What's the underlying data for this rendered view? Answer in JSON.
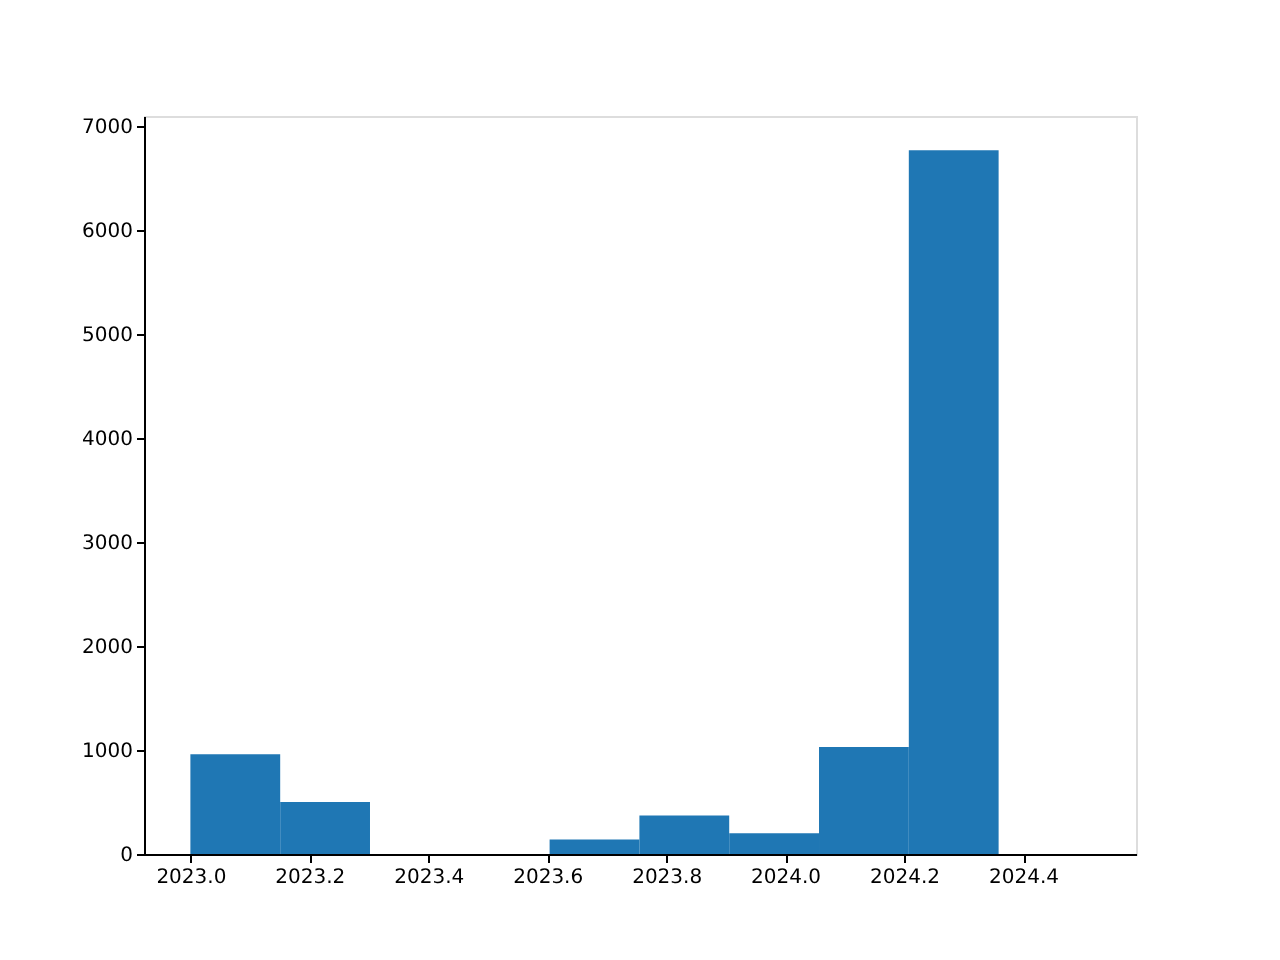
{
  "chart_data": {
    "type": "histogram",
    "bins": [
      2023.0,
      2023.151,
      2023.302,
      2023.453,
      2023.604,
      2023.755,
      2023.906,
      2024.057,
      2024.208,
      2024.359,
      2024.51
    ],
    "values": [
      960,
      500,
      0,
      0,
      140,
      370,
      200,
      1030,
      6770,
      0
    ],
    "color": "#1f77b4",
    "xlim": [
      2022.922,
      2024.59
    ],
    "xticks": [
      {
        "value": 2023,
        "label": "2023.0"
      },
      2023.2,
      2023.4,
      2023.6,
      2023.8,
      {
        "value": 2024,
        "label": "2024.0"
      },
      2024.2,
      2024.4
    ],
    "ylim": [
      0,
      7100
    ],
    "yticks": [
      0,
      1000,
      2000,
      3000,
      4000,
      5000,
      6000,
      7000
    ],
    "grid": false
  }
}
